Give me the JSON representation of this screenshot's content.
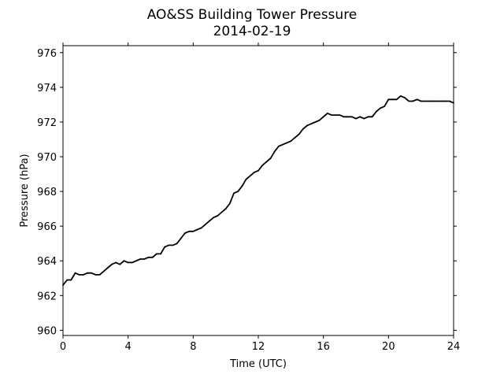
{
  "chart_data": {
    "type": "line",
    "title": "AO&SS Building Tower Pressure",
    "subtitle": "2014-02-19",
    "xlabel": "Time (UTC)",
    "ylabel": "Pressure (hPa)",
    "xlim": [
      0,
      24
    ],
    "ylim": [
      959.7,
      976.4
    ],
    "x_ticks": [
      0,
      4,
      8,
      12,
      16,
      20,
      24
    ],
    "y_ticks": [
      960,
      962,
      964,
      966,
      968,
      970,
      972,
      974,
      976
    ],
    "grid": false,
    "legend": "none",
    "series": [
      {
        "line_color": "#000000",
        "x": [
          0.0,
          0.25,
          0.5,
          0.75,
          1.0,
          1.25,
          1.5,
          1.75,
          2.0,
          2.25,
          2.5,
          2.75,
          3.0,
          3.25,
          3.5,
          3.75,
          4.0,
          4.25,
          4.5,
          4.75,
          5.0,
          5.25,
          5.5,
          5.75,
          6.0,
          6.25,
          6.5,
          6.75,
          7.0,
          7.25,
          7.5,
          7.75,
          8.0,
          8.25,
          8.5,
          8.75,
          9.0,
          9.25,
          9.5,
          9.75,
          10.0,
          10.25,
          10.5,
          10.75,
          11.0,
          11.25,
          11.5,
          11.75,
          12.0,
          12.25,
          12.5,
          12.75,
          13.0,
          13.25,
          13.5,
          13.75,
          14.0,
          14.25,
          14.5,
          14.75,
          15.0,
          15.25,
          15.5,
          15.75,
          16.0,
          16.25,
          16.5,
          16.75,
          17.0,
          17.25,
          17.5,
          17.75,
          18.0,
          18.25,
          18.5,
          18.75,
          19.0,
          19.25,
          19.5,
          19.75,
          20.0,
          20.25,
          20.5,
          20.75,
          21.0,
          21.25,
          21.5,
          21.75,
          22.0,
          22.25,
          22.5,
          22.75,
          23.0,
          23.25,
          23.5,
          23.75,
          24.0
        ],
        "values": [
          962.6,
          962.9,
          962.9,
          963.3,
          963.2,
          963.2,
          963.3,
          963.3,
          963.2,
          963.2,
          963.4,
          963.6,
          963.8,
          963.9,
          963.8,
          964.0,
          963.9,
          963.9,
          964.0,
          964.1,
          964.1,
          964.2,
          964.2,
          964.4,
          964.4,
          964.8,
          964.9,
          964.9,
          965.0,
          965.3,
          965.6,
          965.7,
          965.7,
          965.8,
          965.9,
          966.1,
          966.3,
          966.5,
          966.6,
          966.8,
          967.0,
          967.3,
          967.9,
          968.0,
          968.3,
          968.7,
          968.9,
          969.1,
          969.2,
          969.5,
          969.7,
          969.9,
          970.3,
          970.6,
          970.7,
          970.8,
          970.9,
          971.1,
          971.3,
          971.6,
          971.8,
          971.9,
          972.0,
          972.1,
          972.3,
          972.5,
          972.4,
          972.4,
          972.4,
          972.3,
          972.3,
          972.3,
          972.2,
          972.3,
          972.2,
          972.3,
          972.3,
          972.6,
          972.8,
          972.9,
          973.3,
          973.3,
          973.3,
          973.5,
          973.4,
          973.2,
          973.2,
          973.3,
          973.2,
          973.2,
          973.2,
          973.2,
          973.2,
          973.2,
          973.2,
          973.2,
          973.1
        ]
      }
    ]
  }
}
